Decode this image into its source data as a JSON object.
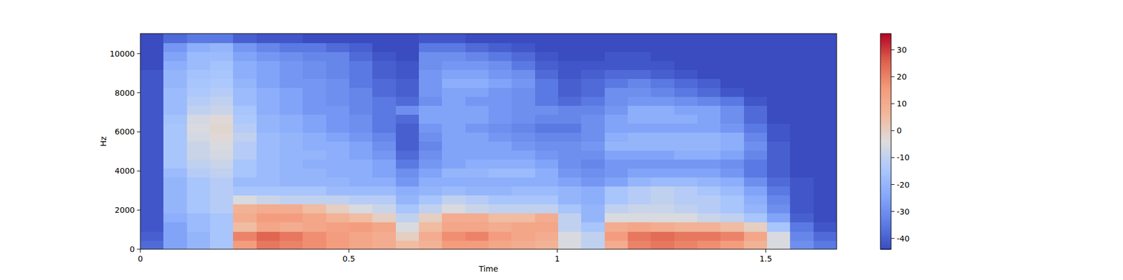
{
  "chart_data": {
    "type": "heatmap",
    "xlabel": "Time",
    "ylabel": "Hz",
    "xlim": [
      0,
      1.67
    ],
    "ylim": [
      0,
      11025
    ],
    "xticks": [
      0,
      0.5,
      1,
      1.5
    ],
    "yticks": [
      0,
      2000,
      4000,
      6000,
      8000,
      10000
    ],
    "cells": [
      [
        -38,
        -25,
        -20,
        -15,
        15,
        22,
        20,
        18,
        15,
        12,
        10,
        5,
        8,
        15,
        15,
        12,
        10,
        8,
        -5,
        -10,
        10,
        20,
        22,
        20,
        18,
        15,
        8,
        -5,
        -30,
        -35
      ],
      [
        -40,
        -25,
        -20,
        -15,
        20,
        25,
        22,
        18,
        15,
        12,
        10,
        0,
        10,
        18,
        20,
        15,
        12,
        10,
        -5,
        -10,
        15,
        22,
        24,
        22,
        22,
        20,
        12,
        -5,
        -32,
        -38
      ],
      [
        -42,
        -25,
        -18,
        -15,
        5,
        12,
        10,
        12,
        14,
        15,
        12,
        -5,
        5,
        12,
        12,
        10,
        12,
        12,
        -10,
        -15,
        10,
        12,
        10,
        8,
        8,
        5,
        0,
        -15,
        -35,
        -42
      ],
      [
        -42,
        -22,
        -18,
        -15,
        10,
        15,
        15,
        12,
        8,
        5,
        0,
        -10,
        0,
        10,
        10,
        5,
        5,
        10,
        -10,
        -20,
        -5,
        -5,
        -5,
        -5,
        -8,
        -10,
        -15,
        -25,
        -40,
        -44
      ],
      [
        -42,
        -20,
        -15,
        -12,
        8,
        10,
        10,
        5,
        0,
        -5,
        -8,
        -15,
        -10,
        -5,
        -8,
        -10,
        -10,
        -10,
        -15,
        -20,
        -10,
        -8,
        -8,
        -10,
        -12,
        -15,
        -20,
        -30,
        -42,
        -44
      ],
      [
        -42,
        -20,
        -15,
        -12,
        -5,
        -8,
        -10,
        -10,
        -10,
        -12,
        -12,
        -20,
        -15,
        -10,
        -12,
        -15,
        -15,
        -15,
        -20,
        -22,
        -15,
        -12,
        -10,
        -12,
        -12,
        -15,
        -22,
        -32,
        -42,
        -44
      ],
      [
        -42,
        -20,
        -15,
        -12,
        -15,
        -15,
        -15,
        -15,
        -18,
        -18,
        -18,
        -22,
        -20,
        -18,
        -20,
        -20,
        -18,
        -18,
        -20,
        -22,
        -15,
        -12,
        -10,
        -12,
        -15,
        -18,
        -25,
        -35,
        -42,
        -44
      ],
      [
        -42,
        -20,
        -15,
        -12,
        -18,
        -18,
        -20,
        -20,
        -20,
        -22,
        -22,
        -28,
        -22,
        -22,
        -22,
        -22,
        -22,
        -22,
        -25,
        -28,
        -25,
        -20,
        -18,
        -18,
        -20,
        -22,
        -30,
        -38,
        -42,
        -44
      ],
      [
        -42,
        -18,
        -12,
        -10,
        -15,
        -18,
        -20,
        -20,
        -22,
        -22,
        -25,
        -30,
        -25,
        -20,
        -20,
        -18,
        -18,
        -22,
        -28,
        -30,
        -28,
        -25,
        -25,
        -25,
        -25,
        -28,
        -35,
        -40,
        -44,
        -44
      ],
      [
        -42,
        -15,
        -10,
        -8,
        -15,
        -18,
        -20,
        -22,
        -22,
        -22,
        -25,
        -35,
        -28,
        -25,
        -22,
        -22,
        -22,
        -25,
        -30,
        -32,
        -28,
        -28,
        -28,
        -28,
        -28,
        -30,
        -35,
        -40,
        -44,
        -44
      ],
      [
        -42,
        -15,
        -8,
        -6,
        -12,
        -18,
        -20,
        -20,
        -22,
        -25,
        -28,
        -38,
        -30,
        -25,
        -25,
        -25,
        -25,
        -28,
        -30,
        -30,
        -25,
        -25,
        -25,
        -22,
        -22,
        -25,
        -32,
        -40,
        -44,
        -44
      ],
      [
        -42,
        -15,
        -8,
        -5,
        -12,
        -18,
        -20,
        -22,
        -22,
        -25,
        -30,
        -40,
        -32,
        -25,
        -25,
        -25,
        -28,
        -30,
        -30,
        -28,
        -20,
        -20,
        -20,
        -20,
        -20,
        -22,
        -30,
        -40,
        -44,
        -44
      ],
      [
        -42,
        -15,
        -6,
        -3,
        -10,
        -18,
        -20,
        -22,
        -25,
        -28,
        -32,
        -40,
        -30,
        -25,
        -25,
        -28,
        -30,
        -32,
        -32,
        -30,
        -22,
        -20,
        -20,
        -20,
        -20,
        -22,
        -32,
        -42,
        -44,
        -44
      ],
      [
        -42,
        -15,
        -5,
        -2,
        -12,
        -20,
        -22,
        -25,
        -28,
        -30,
        -35,
        -40,
        -28,
        -25,
        -28,
        -30,
        -32,
        -35,
        -35,
        -30,
        -25,
        -25,
        -25,
        -25,
        -25,
        -28,
        -35,
        -42,
        -44,
        -44
      ],
      [
        -42,
        -16,
        -6,
        -3,
        -14,
        -20,
        -22,
        -25,
        -28,
        -30,
        -35,
        -38,
        -25,
        -25,
        -25,
        -28,
        -30,
        -32,
        -32,
        -30,
        -25,
        -22,
        -22,
        -22,
        -25,
        -30,
        -38,
        -44,
        -44,
        -44
      ],
      [
        -42,
        -18,
        -10,
        -8,
        -15,
        -22,
        -25,
        -28,
        -28,
        -32,
        -35,
        -30,
        -25,
        -25,
        -25,
        -28,
        -30,
        -30,
        -32,
        -32,
        -28,
        -22,
        -22,
        -25,
        -25,
        -30,
        -38,
        -44,
        -44,
        -44
      ],
      [
        -42,
        -18,
        -12,
        -10,
        -18,
        -22,
        -25,
        -28,
        -30,
        -32,
        -35,
        -38,
        -30,
        -25,
        -28,
        -28,
        -30,
        -35,
        -38,
        -35,
        -30,
        -28,
        -28,
        -30,
        -32,
        -35,
        -42,
        -44,
        -44,
        -44
      ],
      [
        -42,
        -18,
        -14,
        -12,
        -18,
        -22,
        -25,
        -28,
        -30,
        -32,
        -38,
        -40,
        -28,
        -25,
        -25,
        -28,
        -30,
        -35,
        -40,
        -38,
        -30,
        -30,
        -32,
        -35,
        -38,
        -42,
        -44,
        -44,
        -44,
        -44
      ],
      [
        -42,
        -20,
        -15,
        -14,
        -20,
        -25,
        -28,
        -28,
        -30,
        -35,
        -38,
        -40,
        -28,
        -22,
        -22,
        -25,
        -28,
        -35,
        -40,
        -38,
        -35,
        -32,
        -35,
        -38,
        -40,
        -44,
        -44,
        -44,
        -44,
        -44
      ],
      [
        -42,
        -20,
        -16,
        -15,
        -22,
        -25,
        -28,
        -30,
        -32,
        -35,
        -40,
        -42,
        -28,
        -25,
        -25,
        -28,
        -30,
        -38,
        -42,
        -40,
        -38,
        -38,
        -40,
        -42,
        -44,
        -44,
        -44,
        -44,
        -44,
        -44
      ],
      [
        -44,
        -22,
        -18,
        -16,
        -22,
        -25,
        -28,
        -30,
        -32,
        -35,
        -40,
        -42,
        -30,
        -28,
        -28,
        -30,
        -35,
        -40,
        -42,
        -42,
        -42,
        -42,
        -42,
        -44,
        -44,
        -44,
        -44,
        -44,
        -44,
        -44
      ],
      [
        -44,
        -25,
        -18,
        -18,
        -25,
        -28,
        -30,
        -32,
        -32,
        -38,
        -42,
        -44,
        -30,
        -30,
        -32,
        -35,
        -38,
        -42,
        -44,
        -44,
        -42,
        -42,
        -44,
        -44,
        -44,
        -44,
        -44,
        -44,
        -44,
        -44
      ],
      [
        -44,
        -28,
        -22,
        -20,
        -28,
        -32,
        -35,
        -35,
        -38,
        -40,
        -44,
        -44,
        -35,
        -35,
        -38,
        -40,
        -42,
        -44,
        -44,
        -44,
        -44,
        -44,
        -44,
        -44,
        -44,
        -44,
        -44,
        -44,
        -44,
        -44
      ],
      [
        -44,
        -38,
        -35,
        -35,
        -40,
        -42,
        -42,
        -44,
        -44,
        -44,
        -44,
        -44,
        -42,
        -42,
        -44,
        -44,
        -44,
        -44,
        -44,
        -44,
        -44,
        -44,
        -44,
        -44,
        -44,
        -44,
        -44,
        -44,
        -44,
        -44
      ]
    ],
    "color_range": [
      -44,
      36
    ],
    "color_ticks": [
      -40,
      -30,
      -20,
      -10,
      0,
      10,
      20,
      30
    ]
  }
}
